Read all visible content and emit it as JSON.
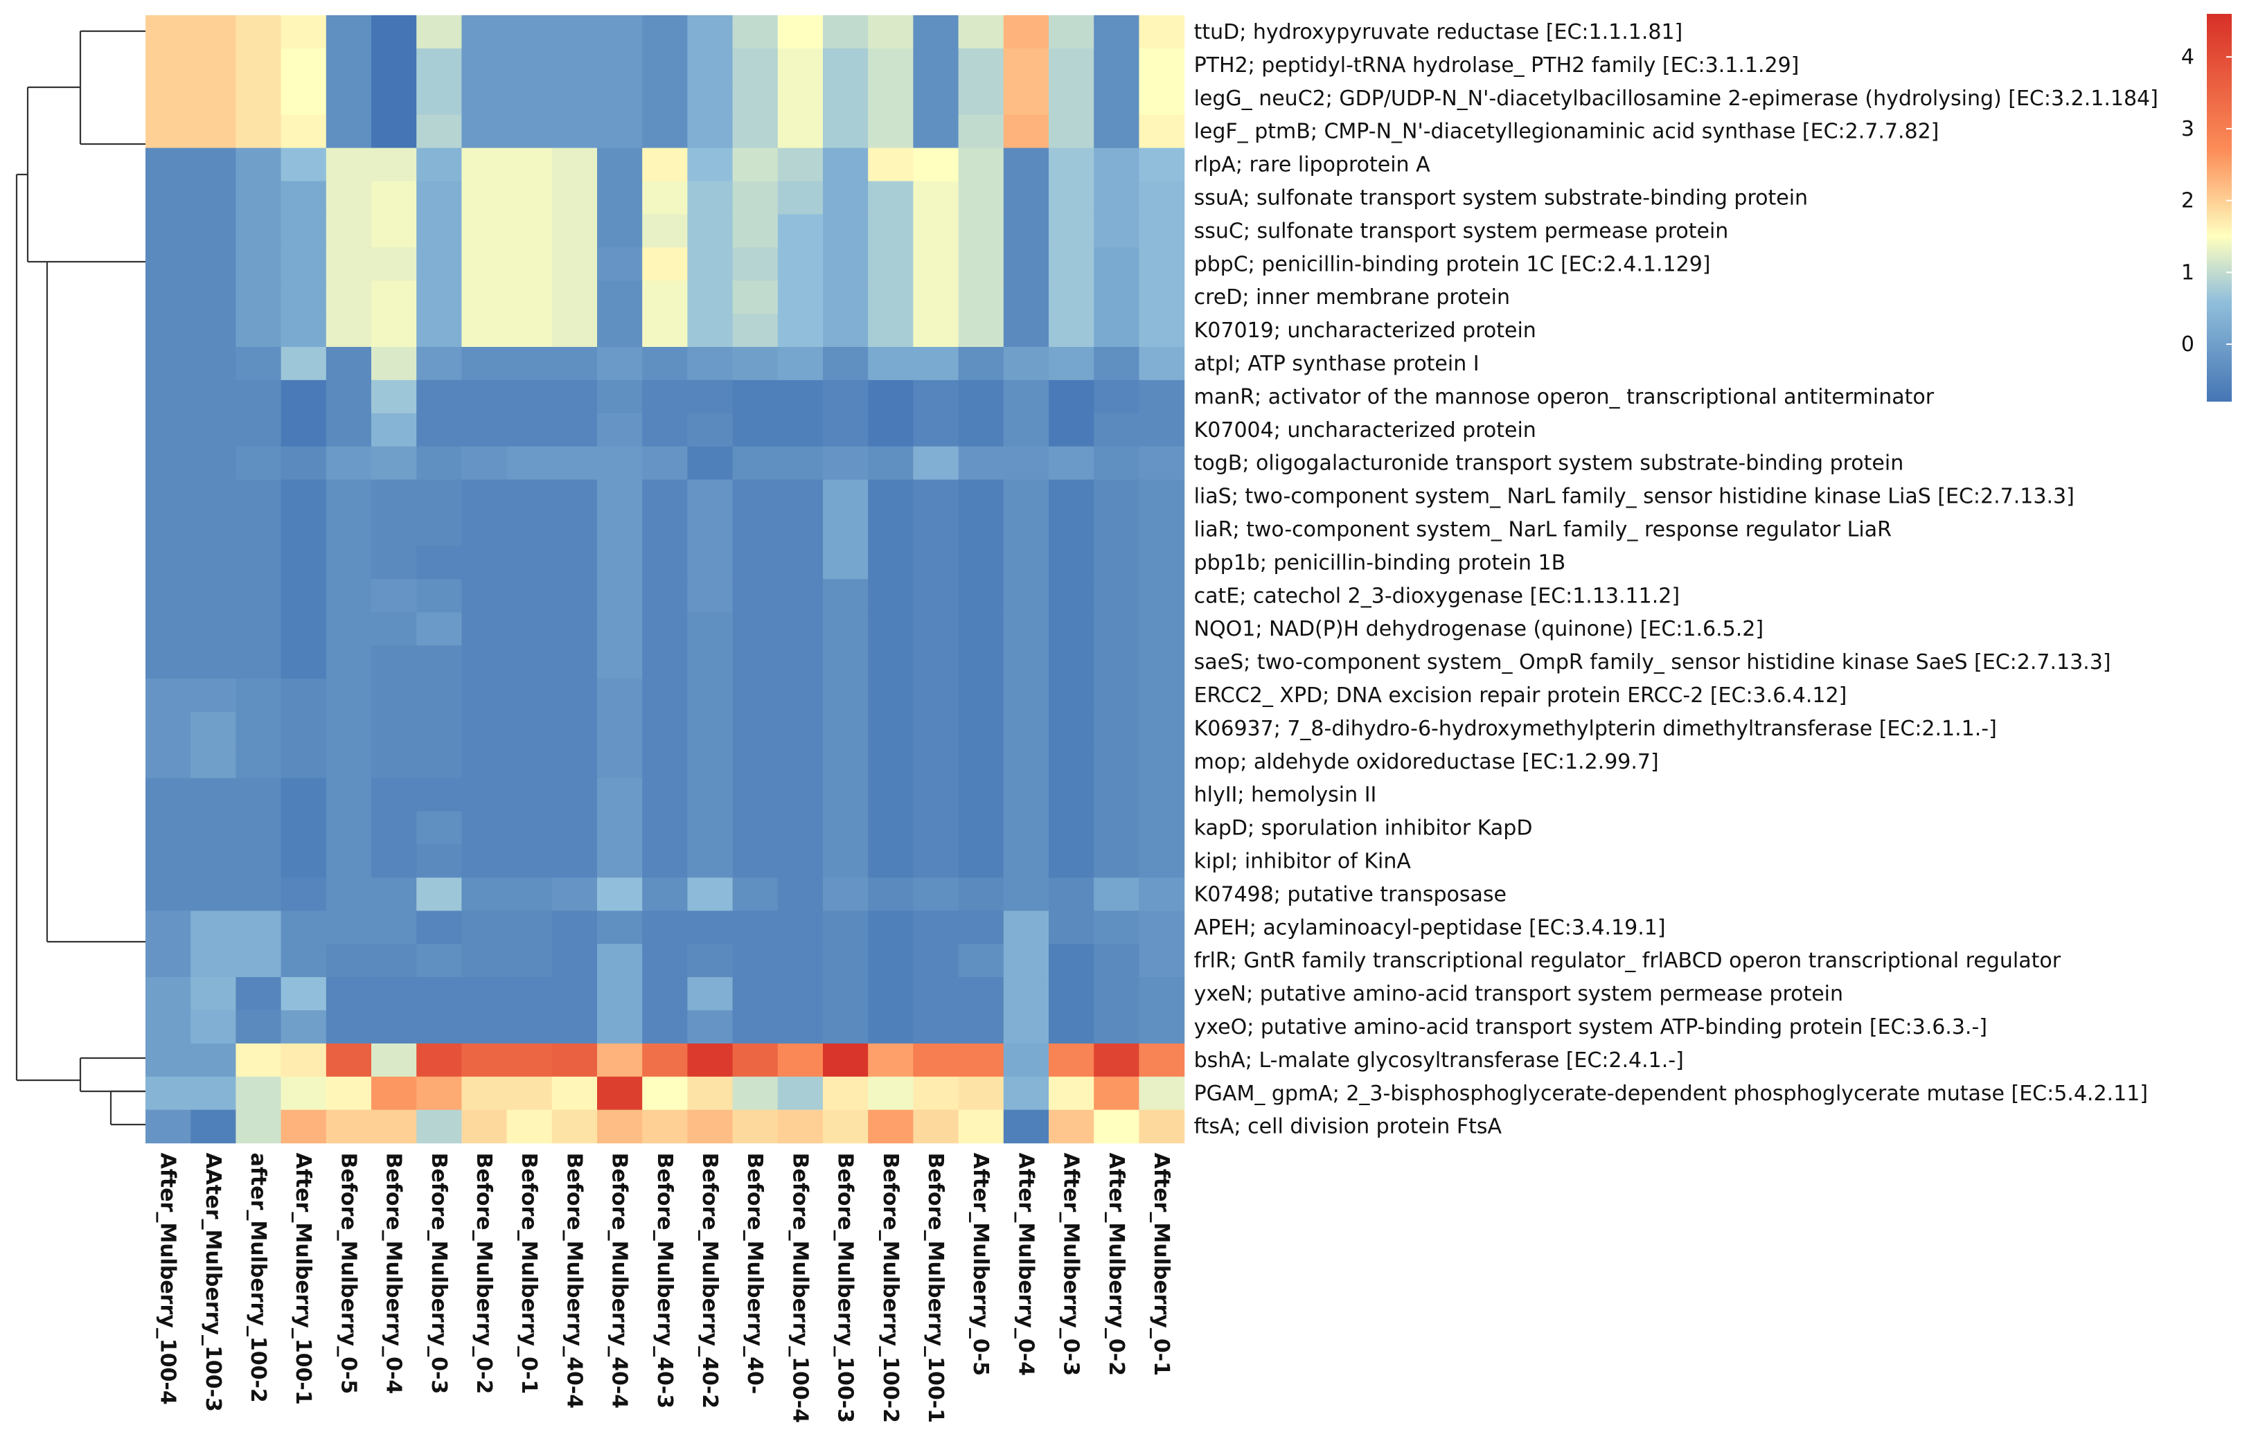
{
  "chart_data": {
    "type": "heatmap",
    "title": "",
    "color_scale": {
      "min": -0.8,
      "max": 4.6,
      "ticks": [
        0,
        1,
        2,
        3,
        4
      ],
      "stops": [
        {
          "value": -0.8,
          "color": "#4575b4"
        },
        {
          "value": 0.6,
          "color": "#91bfdb"
        },
        {
          "value": 1.5,
          "color": "#ffffbf"
        },
        {
          "value": 2.7,
          "color": "#fc8d59"
        },
        {
          "value": 4.6,
          "color": "#d73027"
        }
      ],
      "legend_position": "top-right"
    },
    "columns": [
      "After_Mulberry_100-4",
      "AAter_Mulberry_100-3",
      "after_Mulberry_100-2",
      "After_Mulberry_100-1",
      "Before_Mulberry_0-5",
      "Before_Mulberry_0-4",
      "Before_Mulberry_0-3",
      "Before_Mulberry_0-2",
      "Before_Mulberry_0-1",
      "Before_Mulberry_40-4",
      "Before_Mulberry_40-4",
      "Before_Mulberry_40-3",
      "Before_Mulberry_40-2",
      "Before_Mulberry_40-",
      "Before_Mulberry_100-4",
      "Before_Mulberry_100-3",
      "Before_Mulberry_100-2",
      "Before_Mulberry_100-1",
      "After_Mulberry_0-5",
      "After_Mulberry_0-4",
      "After_Mulberry_0-3",
      "After_Mulberry_0-2",
      "After_Mulberry_0-1"
    ],
    "rows": [
      "ttuD; hydroxypyruvate reductase [EC:1.1.1.81]",
      "PTH2; peptidyl-tRNA hydrolase_ PTH2 family [EC:3.1.1.29]",
      "legG_ neuC2; GDP/UDP-N_N'-diacetylbacillosamine 2-epimerase (hydrolysing) [EC:3.2.1.184]",
      "legF_ ptmB; CMP-N_N'-diacetyllegionaminic acid synthase [EC:2.7.7.82]",
      "rlpA; rare lipoprotein A",
      "ssuA; sulfonate transport system substrate-binding protein",
      "ssuC; sulfonate transport system permease protein",
      "pbpC; penicillin-binding protein 1C [EC:2.4.1.129]",
      "creD; inner membrane protein",
      "K07019; uncharacterized protein",
      "atpI; ATP synthase protein I",
      "manR; activator of the mannose operon_ transcriptional antiterminator",
      "K07004; uncharacterized protein",
      "togB; oligogalacturonide transport system substrate-binding protein",
      "liaS; two-component system_ NarL family_ sensor histidine kinase LiaS [EC:2.7.13.3]",
      "liaR; two-component system_ NarL family_ response regulator LiaR",
      "pbp1b; penicillin-binding protein 1B",
      "catE; catechol 2_3-dioxygenase [EC:1.13.11.2]",
      "NQO1; NAD(P)H dehydrogenase (quinone) [EC:1.6.5.2]",
      "saeS; two-component system_ OmpR family_ sensor histidine kinase SaeS [EC:2.7.13.3]",
      "ERCC2_ XPD; DNA excision repair protein ERCC-2 [EC:3.6.4.12]",
      "K06937; 7_8-dihydro-6-hydroxymethylpterin dimethyltransferase [EC:2.1.1.-]",
      "mop; aldehyde oxidoreductase [EC:1.2.99.7]",
      "hlyII; hemolysin II",
      "kapD; sporulation inhibitor KapD",
      "kipI; inhibitor of KinA",
      "K07498; putative transposase",
      "APEH; acylaminoacyl-peptidase [EC:3.4.19.1]",
      "frlR; GntR family transcriptional regulator_ frlABCD operon transcriptional regulator",
      "yxeN; putative amino-acid transport system permease protein",
      "yxeO; putative amino-acid transport system ATP-binding protein [EC:3.6.3.-]",
      "bshA; L-malate glycosyltransferase [EC:2.4.1.-]",
      "PGAM_ gpmA; 2_3-bisphosphoglycerate-dependent phosphoglycerate mutase [EC:5.4.2.11]",
      "ftsA; cell division protein FtsA"
    ],
    "values": [
      [
        2.0,
        2.0,
        1.8,
        1.6,
        -0.3,
        -0.8,
        1.2,
        -0.1,
        -0.1,
        -0.1,
        -0.1,
        -0.3,
        0.3,
        1.0,
        1.5,
        1.0,
        1.2,
        -0.3,
        1.2,
        2.3,
        1.0,
        -0.3,
        1.6
      ],
      [
        2.0,
        2.0,
        1.8,
        1.5,
        -0.3,
        -0.8,
        0.8,
        -0.1,
        -0.1,
        -0.1,
        -0.1,
        -0.3,
        0.3,
        0.9,
        1.4,
        0.8,
        1.1,
        -0.3,
        0.9,
        2.2,
        0.9,
        -0.3,
        1.5
      ],
      [
        2.0,
        2.0,
        1.8,
        1.5,
        -0.3,
        -0.8,
        0.8,
        -0.1,
        -0.1,
        -0.1,
        -0.1,
        -0.3,
        0.3,
        0.9,
        1.4,
        0.8,
        1.1,
        -0.3,
        0.9,
        2.2,
        0.9,
        -0.3,
        1.5
      ],
      [
        2.0,
        2.0,
        1.8,
        1.6,
        -0.3,
        -0.8,
        0.9,
        -0.1,
        -0.1,
        -0.1,
        -0.1,
        -0.3,
        0.3,
        0.9,
        1.4,
        0.8,
        1.1,
        -0.3,
        1.0,
        2.3,
        0.9,
        -0.3,
        1.6
      ],
      [
        -0.4,
        -0.4,
        0.0,
        0.6,
        1.3,
        1.3,
        0.4,
        1.4,
        1.4,
        1.3,
        -0.3,
        1.6,
        0.6,
        1.1,
        0.9,
        0.3,
        1.6,
        1.5,
        1.1,
        -0.4,
        0.7,
        0.3,
        0.6
      ],
      [
        -0.4,
        -0.4,
        0.0,
        0.2,
        1.3,
        1.4,
        0.3,
        1.4,
        1.4,
        1.3,
        -0.3,
        1.4,
        0.7,
        1.0,
        0.8,
        0.3,
        0.8,
        1.4,
        1.1,
        -0.4,
        0.7,
        0.3,
        0.5
      ],
      [
        -0.4,
        -0.4,
        0.0,
        0.2,
        1.3,
        1.4,
        0.3,
        1.4,
        1.4,
        1.3,
        -0.3,
        1.3,
        0.7,
        1.0,
        0.6,
        0.3,
        0.8,
        1.4,
        1.1,
        -0.4,
        0.7,
        0.3,
        0.5
      ],
      [
        -0.4,
        -0.4,
        0.0,
        0.2,
        1.3,
        1.3,
        0.3,
        1.4,
        1.4,
        1.3,
        -0.2,
        1.6,
        0.7,
        0.9,
        0.6,
        0.3,
        0.8,
        1.4,
        1.1,
        -0.4,
        0.7,
        0.2,
        0.5
      ],
      [
        -0.4,
        -0.4,
        0.0,
        0.2,
        1.3,
        1.4,
        0.3,
        1.4,
        1.4,
        1.3,
        -0.3,
        1.4,
        0.7,
        1.0,
        0.6,
        0.3,
        0.8,
        1.4,
        1.1,
        -0.4,
        0.7,
        0.2,
        0.5
      ],
      [
        -0.4,
        -0.4,
        0.0,
        0.2,
        1.3,
        1.4,
        0.3,
        1.4,
        1.4,
        1.3,
        -0.3,
        1.4,
        0.7,
        0.9,
        0.6,
        0.3,
        0.8,
        1.4,
        1.1,
        -0.4,
        0.7,
        0.2,
        0.5
      ],
      [
        -0.4,
        -0.4,
        -0.3,
        0.7,
        -0.4,
        1.2,
        -0.1,
        -0.3,
        -0.3,
        -0.3,
        -0.1,
        -0.3,
        -0.1,
        0.0,
        0.1,
        -0.3,
        0.2,
        0.2,
        -0.3,
        0.0,
        0.1,
        -0.3,
        0.3
      ],
      [
        -0.4,
        -0.4,
        -0.4,
        -0.7,
        -0.4,
        0.7,
        -0.5,
        -0.5,
        -0.5,
        -0.5,
        -0.3,
        -0.5,
        -0.5,
        -0.6,
        -0.6,
        -0.5,
        -0.7,
        -0.5,
        -0.6,
        -0.3,
        -0.7,
        -0.5,
        -0.4
      ],
      [
        -0.4,
        -0.4,
        -0.4,
        -0.7,
        -0.4,
        0.4,
        -0.5,
        -0.5,
        -0.5,
        -0.5,
        -0.2,
        -0.5,
        -0.4,
        -0.6,
        -0.6,
        -0.5,
        -0.7,
        -0.5,
        -0.6,
        -0.3,
        -0.7,
        -0.4,
        -0.4
      ],
      [
        -0.4,
        -0.4,
        -0.3,
        -0.4,
        -0.1,
        0.0,
        -0.3,
        -0.2,
        -0.1,
        -0.1,
        -0.1,
        -0.2,
        -0.6,
        -0.3,
        -0.3,
        -0.2,
        -0.3,
        0.3,
        -0.2,
        -0.2,
        -0.1,
        -0.3,
        -0.2
      ],
      [
        -0.4,
        -0.4,
        -0.4,
        -0.6,
        -0.3,
        -0.4,
        -0.4,
        -0.5,
        -0.5,
        -0.5,
        -0.1,
        -0.5,
        -0.2,
        -0.5,
        -0.5,
        0.1,
        -0.6,
        -0.5,
        -0.6,
        -0.3,
        -0.6,
        -0.4,
        -0.3
      ],
      [
        -0.4,
        -0.4,
        -0.4,
        -0.6,
        -0.3,
        -0.4,
        -0.4,
        -0.5,
        -0.5,
        -0.5,
        -0.1,
        -0.5,
        -0.2,
        -0.5,
        -0.5,
        0.1,
        -0.6,
        -0.5,
        -0.6,
        -0.3,
        -0.6,
        -0.4,
        -0.3
      ],
      [
        -0.4,
        -0.4,
        -0.4,
        -0.6,
        -0.3,
        -0.4,
        -0.5,
        -0.5,
        -0.5,
        -0.5,
        -0.1,
        -0.5,
        -0.2,
        -0.5,
        -0.5,
        0.1,
        -0.6,
        -0.5,
        -0.6,
        -0.3,
        -0.6,
        -0.4,
        -0.3
      ],
      [
        -0.4,
        -0.4,
        -0.4,
        -0.6,
        -0.3,
        -0.2,
        -0.3,
        -0.5,
        -0.5,
        -0.5,
        -0.1,
        -0.5,
        -0.2,
        -0.5,
        -0.5,
        -0.3,
        -0.6,
        -0.5,
        -0.6,
        -0.3,
        -0.6,
        -0.4,
        -0.3
      ],
      [
        -0.4,
        -0.4,
        -0.4,
        -0.6,
        -0.3,
        -0.3,
        -0.1,
        -0.5,
        -0.5,
        -0.5,
        -0.1,
        -0.5,
        -0.3,
        -0.5,
        -0.5,
        -0.3,
        -0.6,
        -0.5,
        -0.6,
        -0.3,
        -0.6,
        -0.4,
        -0.3
      ],
      [
        -0.4,
        -0.4,
        -0.4,
        -0.6,
        -0.3,
        -0.4,
        -0.4,
        -0.5,
        -0.5,
        -0.5,
        -0.1,
        -0.5,
        -0.3,
        -0.5,
        -0.5,
        -0.3,
        -0.6,
        -0.5,
        -0.6,
        -0.3,
        -0.6,
        -0.4,
        -0.3
      ],
      [
        -0.2,
        -0.2,
        -0.3,
        -0.4,
        -0.3,
        -0.4,
        -0.4,
        -0.5,
        -0.5,
        -0.5,
        -0.2,
        -0.5,
        -0.3,
        -0.5,
        -0.5,
        -0.3,
        -0.6,
        -0.5,
        -0.6,
        -0.3,
        -0.6,
        -0.4,
        -0.3
      ],
      [
        -0.2,
        0.0,
        -0.3,
        -0.4,
        -0.3,
        -0.4,
        -0.4,
        -0.5,
        -0.5,
        -0.5,
        -0.2,
        -0.5,
        -0.3,
        -0.5,
        -0.5,
        -0.3,
        -0.6,
        -0.5,
        -0.6,
        -0.3,
        -0.6,
        -0.4,
        -0.3
      ],
      [
        -0.2,
        0.0,
        -0.3,
        -0.4,
        -0.3,
        -0.4,
        -0.4,
        -0.5,
        -0.5,
        -0.5,
        -0.2,
        -0.5,
        -0.3,
        -0.5,
        -0.5,
        -0.3,
        -0.6,
        -0.5,
        -0.6,
        -0.3,
        -0.6,
        -0.4,
        -0.3
      ],
      [
        -0.4,
        -0.4,
        -0.4,
        -0.6,
        -0.3,
        -0.5,
        -0.5,
        -0.5,
        -0.5,
        -0.5,
        -0.1,
        -0.5,
        -0.3,
        -0.5,
        -0.5,
        -0.3,
        -0.6,
        -0.5,
        -0.6,
        -0.3,
        -0.6,
        -0.4,
        -0.3
      ],
      [
        -0.4,
        -0.4,
        -0.4,
        -0.6,
        -0.3,
        -0.5,
        -0.3,
        -0.5,
        -0.5,
        -0.5,
        -0.1,
        -0.5,
        -0.3,
        -0.5,
        -0.5,
        -0.3,
        -0.6,
        -0.5,
        -0.6,
        -0.3,
        -0.6,
        -0.4,
        -0.3
      ],
      [
        -0.4,
        -0.4,
        -0.4,
        -0.6,
        -0.3,
        -0.5,
        -0.4,
        -0.5,
        -0.5,
        -0.5,
        -0.1,
        -0.5,
        -0.3,
        -0.5,
        -0.5,
        -0.3,
        -0.6,
        -0.5,
        -0.6,
        -0.3,
        -0.6,
        -0.4,
        -0.3
      ],
      [
        -0.4,
        -0.4,
        -0.4,
        -0.5,
        -0.3,
        -0.3,
        0.7,
        -0.3,
        -0.3,
        -0.2,
        0.6,
        -0.3,
        0.5,
        -0.3,
        -0.5,
        -0.2,
        -0.4,
        -0.3,
        -0.4,
        -0.3,
        -0.4,
        0.1,
        -0.1
      ],
      [
        -0.2,
        0.3,
        0.3,
        -0.3,
        -0.3,
        -0.3,
        -0.5,
        -0.4,
        -0.4,
        -0.5,
        -0.3,
        -0.5,
        -0.5,
        -0.5,
        -0.5,
        -0.4,
        -0.6,
        -0.5,
        -0.5,
        0.3,
        -0.4,
        -0.3,
        -0.2
      ],
      [
        -0.2,
        0.3,
        0.3,
        -0.3,
        -0.4,
        -0.4,
        -0.3,
        -0.4,
        -0.4,
        -0.5,
        0.2,
        -0.5,
        -0.4,
        -0.5,
        -0.5,
        -0.4,
        -0.6,
        -0.5,
        -0.3,
        0.3,
        -0.6,
        -0.4,
        -0.2
      ],
      [
        0.0,
        0.4,
        -0.5,
        0.6,
        -0.5,
        -0.5,
        -0.5,
        -0.5,
        -0.5,
        -0.5,
        0.2,
        -0.5,
        0.3,
        -0.5,
        -0.5,
        -0.4,
        -0.6,
        -0.5,
        -0.5,
        0.3,
        -0.6,
        -0.4,
        -0.3
      ],
      [
        0.0,
        0.3,
        -0.4,
        0.0,
        -0.5,
        -0.5,
        -0.5,
        -0.5,
        -0.5,
        -0.5,
        0.2,
        -0.5,
        -0.2,
        -0.5,
        -0.5,
        -0.4,
        -0.6,
        -0.5,
        -0.5,
        0.3,
        -0.6,
        -0.4,
        -0.3
      ],
      [
        0.0,
        0.0,
        1.6,
        1.7,
        3.6,
        1.2,
        3.9,
        3.5,
        3.5,
        3.6,
        2.3,
        3.3,
        4.4,
        3.5,
        2.8,
        4.5,
        2.5,
        3.0,
        3.0,
        0.2,
        2.9,
        4.2,
        2.9
      ],
      [
        0.4,
        0.4,
        1.1,
        1.4,
        1.6,
        2.6,
        2.4,
        1.8,
        1.8,
        1.6,
        4.3,
        1.5,
        1.8,
        1.1,
        0.8,
        1.7,
        1.4,
        1.7,
        1.8,
        0.4,
        1.6,
        2.6,
        1.3
      ],
      [
        -0.2,
        -0.6,
        1.1,
        2.3,
        2.0,
        2.0,
        0.9,
        1.9,
        1.6,
        1.8,
        2.2,
        2.0,
        2.2,
        1.9,
        2.0,
        1.8,
        2.5,
        1.9,
        1.6,
        -0.6,
        2.1,
        1.5,
        1.9
      ]
    ]
  }
}
